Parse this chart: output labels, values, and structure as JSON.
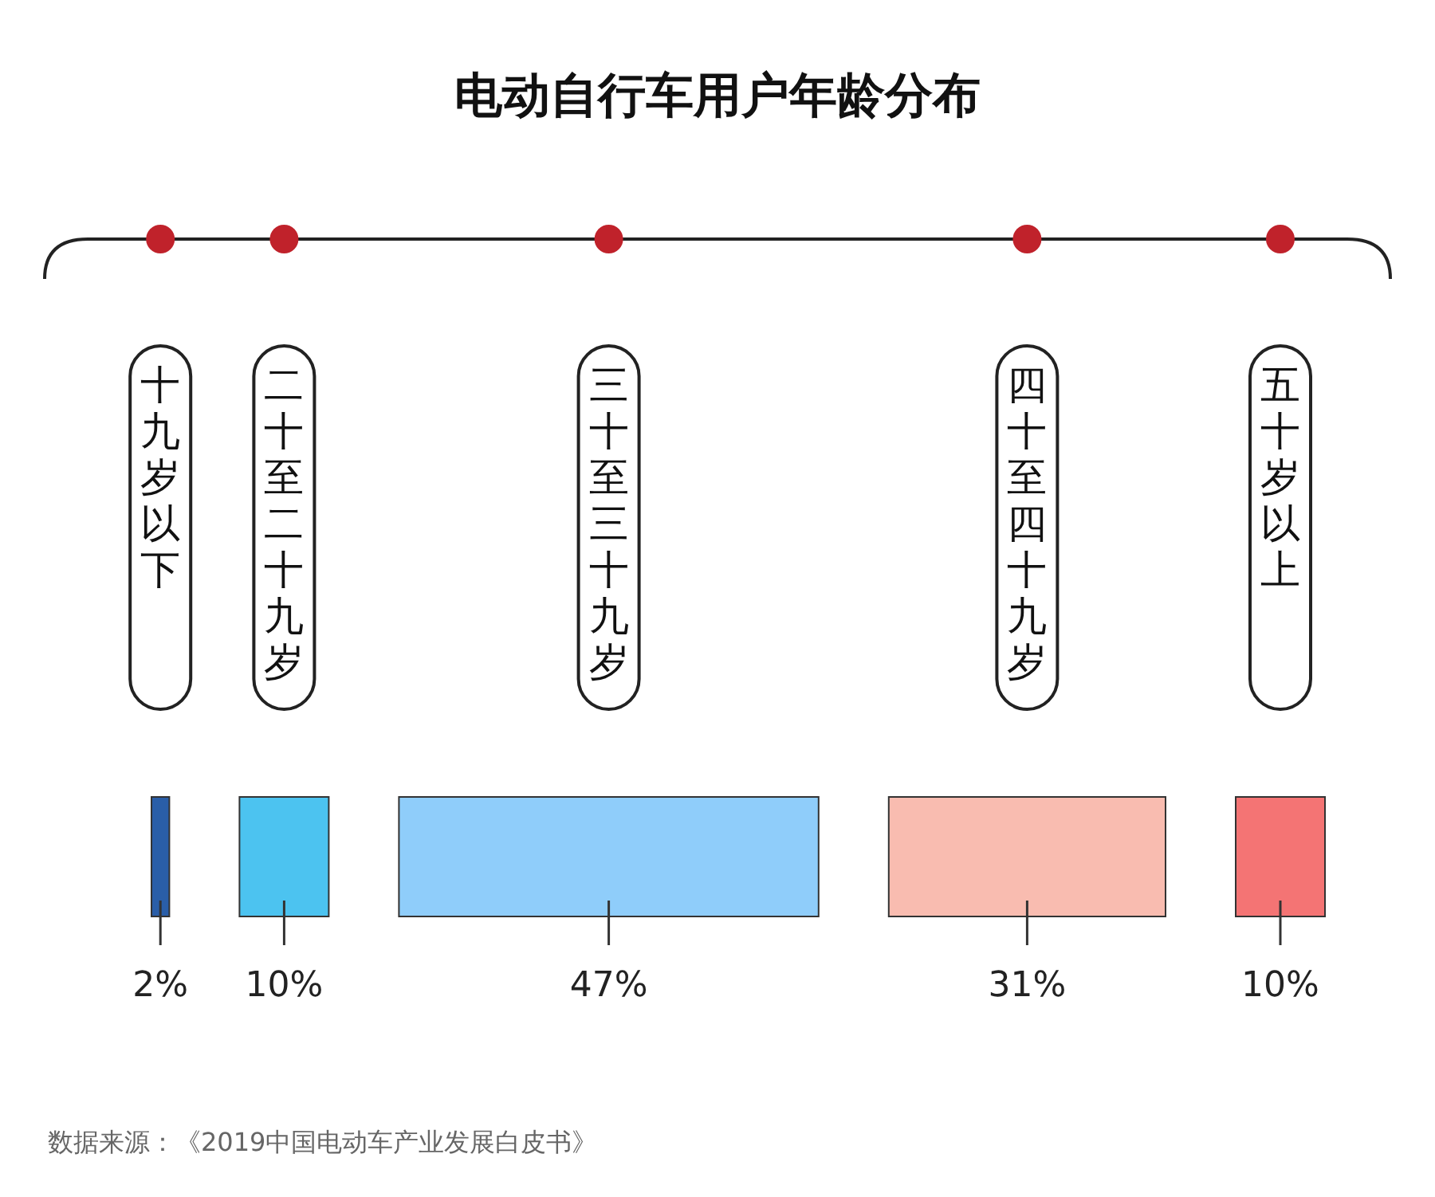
{
  "chart_data": {
    "type": "other",
    "title": "电动自行车用户年龄分布",
    "categories": [
      "十九岁以下",
      "二十至二十九岁",
      "三十至三十九岁",
      "四十至四十九岁",
      "五十岁以上"
    ],
    "values": [
      2,
      10,
      47,
      31,
      10
    ],
    "colors": [
      "#2a5ea8",
      "#4cc3f0",
      "#8fcdfa",
      "#f9bcb0",
      "#f47474"
    ],
    "value_labels": [
      "2%",
      "10%",
      "47%",
      "31%",
      "10%"
    ],
    "annotations": [
      "数据来源：《2019中国电动车产业发展白皮书》"
    ]
  }
}
